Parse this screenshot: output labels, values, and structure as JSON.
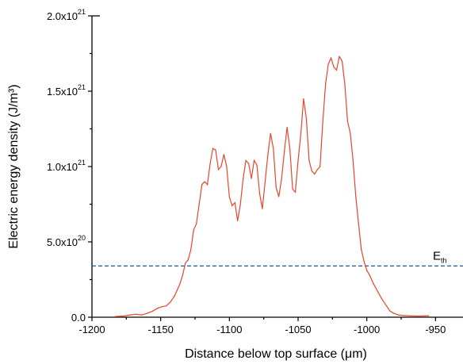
{
  "chart_data": {
    "type": "line",
    "title": "",
    "xlabel": "Distance below top surface (μm)",
    "ylabel": "Electric energy density (J/m³)",
    "xlim": [
      -1200,
      -930
    ],
    "ylim": [
      0,
      2e+21
    ],
    "x_ticks": [
      -1200,
      -1150,
      -1100,
      -1050,
      -1000,
      -950
    ],
    "x_tick_labels": [
      "-1200",
      "-1150",
      "-1100",
      "-1050",
      "-1000",
      "-950"
    ],
    "y_ticks": [
      {
        "value": 0,
        "mant": "0.0",
        "exp": ""
      },
      {
        "value": 5e+20,
        "mant": "5.0x10",
        "exp": "20"
      },
      {
        "value": 1e+21,
        "mant": "1.0x10",
        "exp": "21"
      },
      {
        "value": 1.5e+21,
        "mant": "1.5x10",
        "exp": "21"
      },
      {
        "value": 2e+21,
        "mant": "2.0x10",
        "exp": "21"
      }
    ],
    "grid": false,
    "line_color": "#e8452a",
    "threshold": {
      "value": 3.4e+20,
      "label": "E",
      "label_sub": "th",
      "color": "#2a4f9a",
      "style": "dashed"
    },
    "series": [
      {
        "x": [
          -1183,
          -1177,
          -1172,
          -1168,
          -1164,
          -1160,
          -1156,
          -1152,
          -1149,
          -1146,
          -1143,
          -1140,
          -1138,
          -1136,
          -1134,
          -1132,
          -1130,
          -1128,
          -1126,
          -1124,
          -1122,
          -1120,
          -1118,
          -1116,
          -1114,
          -1112,
          -1110,
          -1108,
          -1106,
          -1104,
          -1102,
          -1100,
          -1098,
          -1096,
          -1094,
          -1092,
          -1090,
          -1088,
          -1086,
          -1084,
          -1082,
          -1080,
          -1078,
          -1076,
          -1074,
          -1072,
          -1070,
          -1068,
          -1066,
          -1064,
          -1062,
          -1060,
          -1058,
          -1056,
          -1054,
          -1052,
          -1050,
          -1048,
          -1046,
          -1044,
          -1042,
          -1040,
          -1038,
          -1036,
          -1034,
          -1032,
          -1030,
          -1028,
          -1026,
          -1024,
          -1022,
          -1020,
          -1018,
          -1016,
          -1014,
          -1012,
          -1010,
          -1008,
          -1006,
          -1004,
          -1002,
          -1000,
          -998,
          -995,
          -992,
          -989,
          -986,
          -983,
          -980,
          -977,
          -974,
          -970,
          -965,
          -960,
          -955
        ],
        "y": [
          5e+18,
          8e+18,
          1.5e+19,
          2e+19,
          1.5e+19,
          2.5e+19,
          4e+19,
          6e+19,
          7e+19,
          7.5e+19,
          1e+20,
          1.4e+20,
          1.8e+20,
          2.2e+20,
          2.8e+20,
          3.6e+20,
          3.8e+20,
          4.5e+20,
          5.8e+20,
          6.2e+20,
          7.5e+20,
          8.8e+20,
          9e+20,
          8.8e+20,
          1.02e+21,
          1.12e+21,
          1.11e+21,
          9.8e+20,
          1e+21,
          1.08e+21,
          1e+21,
          8e+20,
          7.4e+20,
          7.6e+20,
          6.4e+20,
          7.5e+20,
          9.2e+20,
          1.04e+21,
          1.02e+21,
          9.2e+20,
          1.04e+21,
          1.01e+21,
          8.2e+20,
          7.2e+20,
          9e+20,
          1.08e+21,
          1.22e+21,
          1.12e+21,
          8.6e+20,
          8e+20,
          9.2e+20,
          1.1e+21,
          1.26e+21,
          1.12e+21,
          8.5e+20,
          8.3e+20,
          1.04e+21,
          1.22e+21,
          1.45e+21,
          1.32e+21,
          1.04e+21,
          9.7e+20,
          9.5e+20,
          9.8e+20,
          1e+21,
          1.3e+21,
          1.55e+21,
          1.68e+21,
          1.72e+21,
          1.66e+21,
          1.64e+21,
          1.73e+21,
          1.7e+21,
          1.55e+21,
          1.3e+21,
          1.22e+21,
          1.04e+21,
          8e+20,
          6.2e+20,
          4.5e+20,
          3.7e+20,
          3.1e+20,
          2.8e+20,
          2.2e+20,
          1.7e+20,
          1.2e+20,
          8e+19,
          4e+19,
          2.5e+19,
          1.5e+19,
          1.2e+19,
          1e+19,
          8e+18,
          8e+18,
          1e+19
        ]
      }
    ]
  }
}
